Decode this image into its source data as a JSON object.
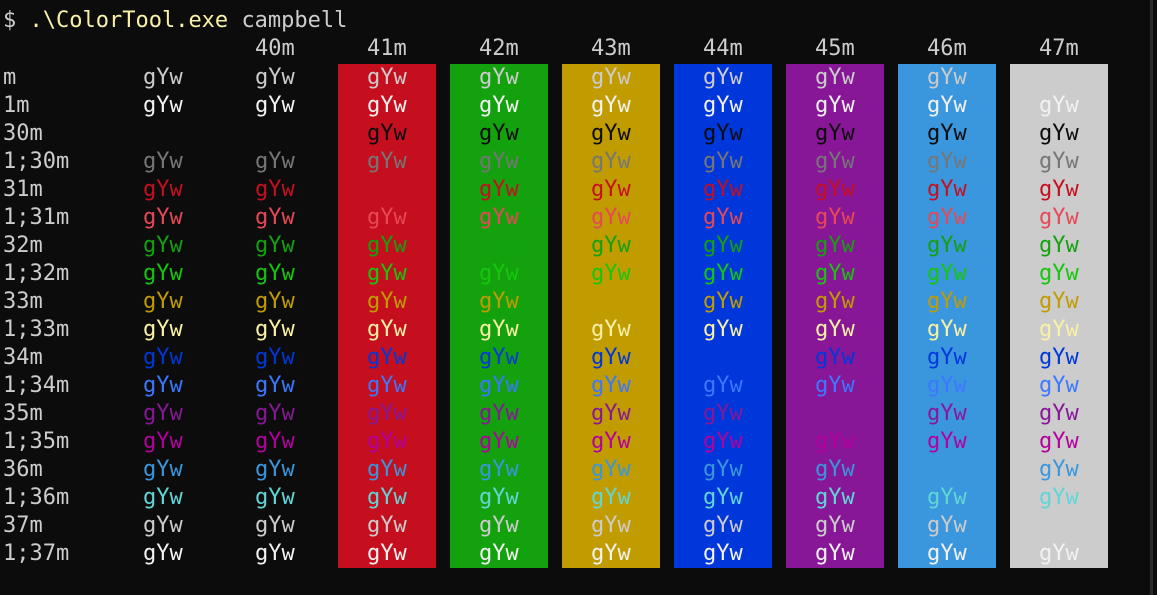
{
  "terminal": {
    "command": {
      "prompt": "$",
      "program": ".\\ColorTool.exe",
      "argument": "campbell"
    },
    "colors": {
      "background": "#0C0C0C",
      "prompt": "#CCCCCC",
      "program": "#F9F1A5",
      "argument": "#CCCCCC"
    },
    "sample_text": "gYw",
    "columns": [
      {
        "label": "40m",
        "bg": "#0C0C0C"
      },
      {
        "label": "41m",
        "bg": "#C50F1F"
      },
      {
        "label": "42m",
        "bg": "#13A10E"
      },
      {
        "label": "43m",
        "bg": "#C19C00"
      },
      {
        "label": "44m",
        "bg": "#0037DA"
      },
      {
        "label": "45m",
        "bg": "#881798"
      },
      {
        "label": "46m",
        "bg": "#3A96DD"
      },
      {
        "label": "47m",
        "bg": "#CCCCCC"
      }
    ],
    "rows": [
      {
        "label": "m",
        "fg": "#CCCCCC"
      },
      {
        "label": "1m",
        "fg": "#F2F2F2"
      },
      {
        "label": "30m",
        "fg": "#0C0C0C"
      },
      {
        "label": "1;30m",
        "fg": "#767676"
      },
      {
        "label": "31m",
        "fg": "#C50F1F"
      },
      {
        "label": "1;31m",
        "fg": "#E74856"
      },
      {
        "label": "32m",
        "fg": "#13A10E"
      },
      {
        "label": "1;32m",
        "fg": "#16C60C"
      },
      {
        "label": "33m",
        "fg": "#C19C00"
      },
      {
        "label": "1;33m",
        "fg": "#F9F1A5"
      },
      {
        "label": "34m",
        "fg": "#0037DA"
      },
      {
        "label": "1;34m",
        "fg": "#3B78FF"
      },
      {
        "label": "35m",
        "fg": "#881798"
      },
      {
        "label": "1;35m",
        "fg": "#B4009E"
      },
      {
        "label": "36m",
        "fg": "#3A96DD"
      },
      {
        "label": "1;36m",
        "fg": "#61D6D6"
      },
      {
        "label": "37m",
        "fg": "#CCCCCC"
      },
      {
        "label": "1;37m",
        "fg": "#F2F2F2"
      }
    ]
  }
}
